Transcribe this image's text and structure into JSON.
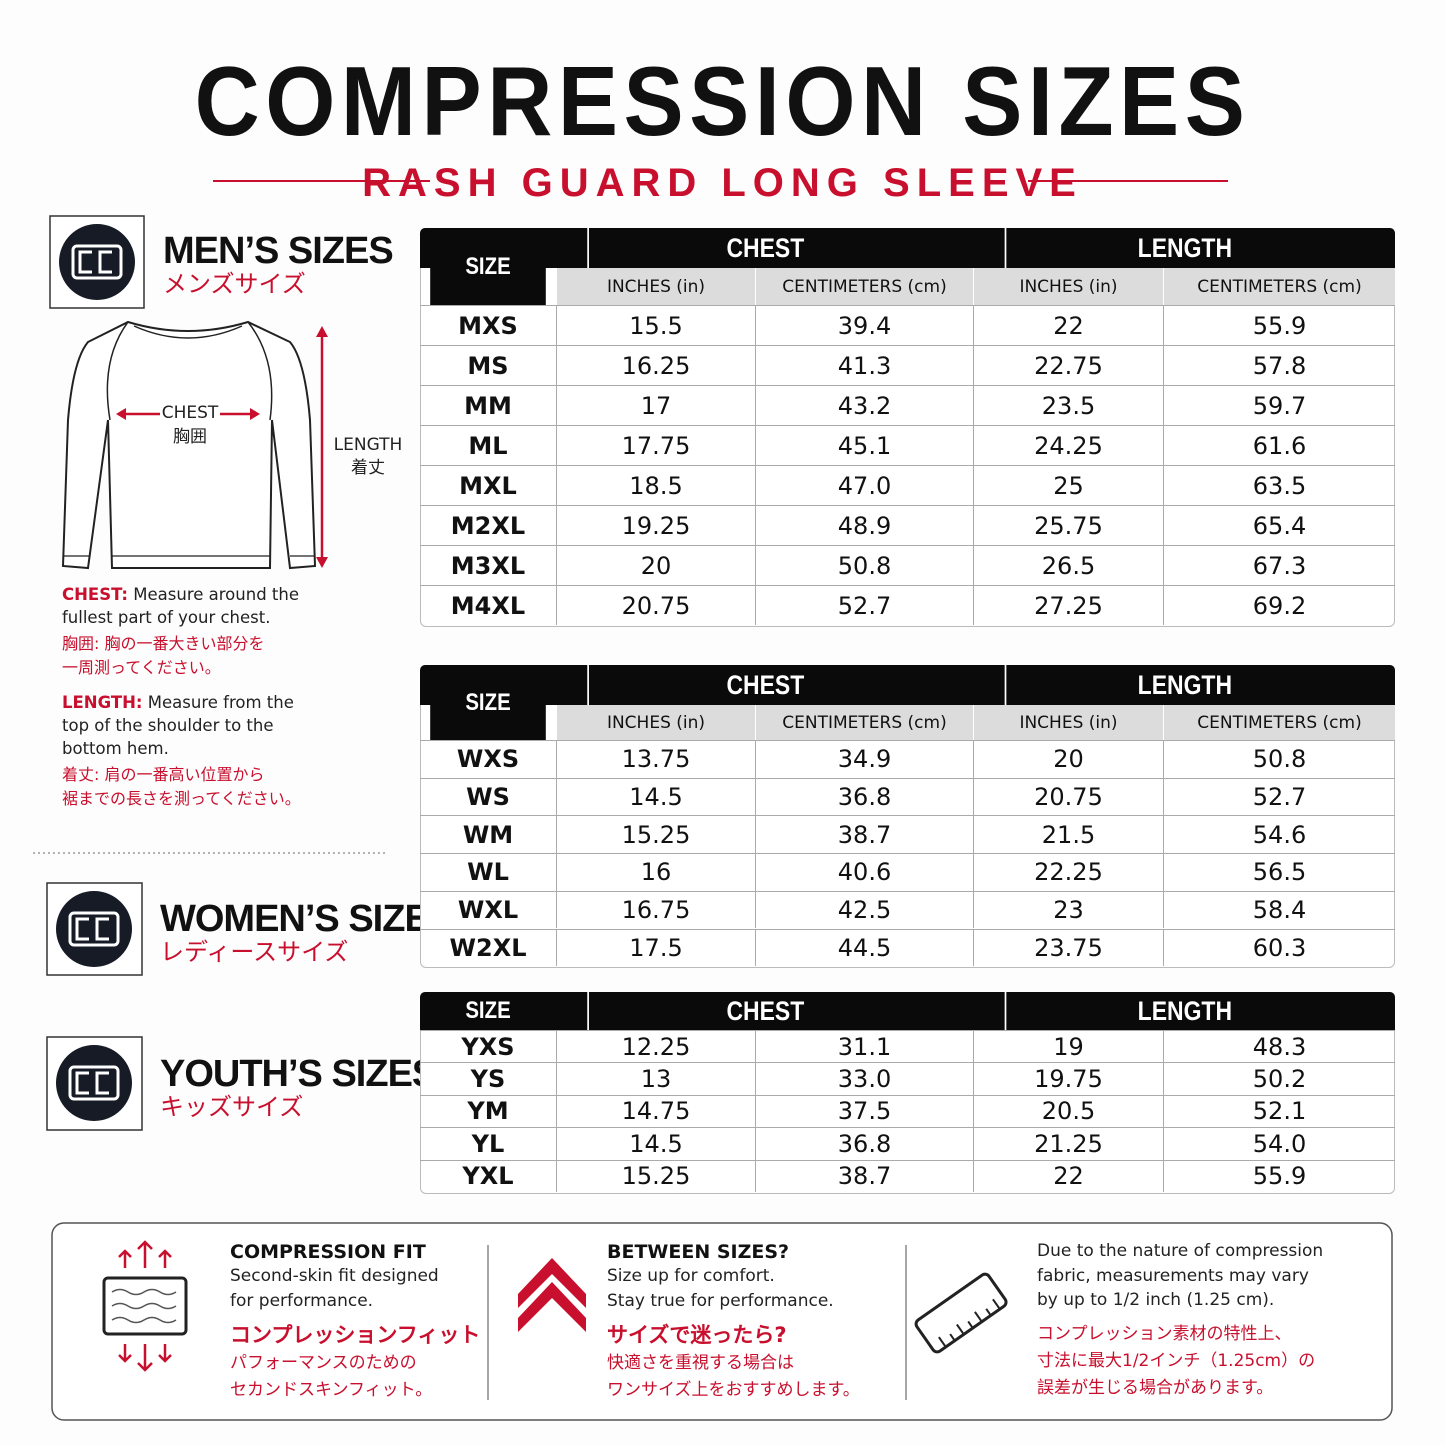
{
  "header": {
    "title": "COMPRESSION SIZES",
    "subtitle": "RASH GUARD LONG SLEEVE"
  },
  "sections": [
    {
      "title": "MEN’S SIZES",
      "title_ja": "メンズサイズ"
    },
    {
      "title": "WOMEN’S SIZES",
      "title_ja": "レディースサイズ"
    },
    {
      "title": "YOUTH’S SIZES",
      "title_ja": "キッズサイズ"
    }
  ],
  "diagram": {
    "chest": "CHEST",
    "chest_ja": "胸囲",
    "length": "LENGTH",
    "length_ja": "着丈"
  },
  "notes": [
    {
      "label": "CHEST:",
      "lines": [
        "Measure around the",
        "fullest part of your chest."
      ],
      "lines_ja": [
        "胸囲: 胸の一番大きい部分を",
        "一周測ってください。"
      ]
    },
    {
      "label": "LENGTH:",
      "lines": [
        "Measure from the",
        "top of the shoulder to the",
        "bottom hem."
      ],
      "lines_ja": [
        "着丈: 肩の一番高い位置から",
        "裾までの長さを測ってください。"
      ]
    }
  ],
  "tables": [
    {
      "size_label": "SIZE",
      "groups": [
        "CHEST",
        "LENGTH"
      ],
      "subheaders": [
        "INCHES (in)",
        "CENTIMETERS (cm)",
        "INCHES (in)",
        "CENTIMETERS (cm)"
      ],
      "rows": [
        [
          "MXS",
          "15.5",
          "39.4",
          "22",
          "55.9"
        ],
        [
          "MS",
          "16.25",
          "41.3",
          "22.75",
          "57.8"
        ],
        [
          "MM",
          "17",
          "43.2",
          "23.5",
          "59.7"
        ],
        [
          "ML",
          "17.75",
          "45.1",
          "24.25",
          "61.6"
        ],
        [
          "MXL",
          "18.5",
          "47.0",
          "25",
          "63.5"
        ],
        [
          "M2XL",
          "19.25",
          "48.9",
          "25.75",
          "65.4"
        ],
        [
          "M3XL",
          "20",
          "50.8",
          "26.5",
          "67.3"
        ],
        [
          "M4XL",
          "20.75",
          "52.7",
          "27.25",
          "69.2"
        ]
      ]
    },
    {
      "size_label": "SIZE",
      "groups": [
        "CHEST",
        "LENGTH"
      ],
      "subheaders": [
        "INCHES (in)",
        "CENTIMETERS (cm)",
        "INCHES (in)",
        "CENTIMETERS (cm)"
      ],
      "rows": [
        [
          "WXS",
          "13.75",
          "34.9",
          "20",
          "50.8"
        ],
        [
          "WS",
          "14.5",
          "36.8",
          "20.75",
          "52.7"
        ],
        [
          "WM",
          "15.25",
          "38.7",
          "21.5",
          "54.6"
        ],
        [
          "WL",
          "16",
          "40.6",
          "22.25",
          "56.5"
        ],
        [
          "WXL",
          "16.75",
          "42.5",
          "23",
          "58.4"
        ],
        [
          "W2XL",
          "17.5",
          "44.5",
          "23.75",
          "60.3"
        ]
      ]
    },
    {
      "size_label": "SIZE",
      "groups": [
        "CHEST",
        "LENGTH"
      ],
      "rows": [
        [
          "YXS",
          "12.25",
          "31.1",
          "19",
          "48.3"
        ],
        [
          "YS",
          "13",
          "33.0",
          "19.75",
          "50.2"
        ],
        [
          "YM",
          "14.75",
          "37.5",
          "20.5",
          "52.1"
        ],
        [
          "YL",
          "14.5",
          "36.8",
          "21.25",
          "54.0"
        ],
        [
          "YXL",
          "15.25",
          "38.7",
          "22",
          "55.9"
        ]
      ]
    }
  ],
  "footer": [
    {
      "title": "COMPRESSION FIT",
      "lines": [
        "Second-skin fit designed",
        "for performance."
      ],
      "title_ja": "コンプレッションフィット",
      "lines_ja": [
        "パフォーマンスのための",
        "セカンドスキンフィット。"
      ]
    },
    {
      "title": "BETWEEN SIZES?",
      "lines": [
        "Size up for comfort.",
        "Stay true for performance."
      ],
      "title_ja": "サイズで迷ったら?",
      "lines_ja": [
        "快適さを重視する場合は",
        "ワンサイズ上をおすすめします。"
      ]
    },
    {
      "lines": [
        "Due to the nature of compression",
        "fabric, measurements may vary",
        "by up to 1/2 inch (1.25 cm)."
      ],
      "lines_ja": [
        "コンプレッション素材の特性上、",
        "寸法に最大1/2インチ（1.25cm）の",
        "誤差が生じる場合があります。"
      ]
    }
  ]
}
